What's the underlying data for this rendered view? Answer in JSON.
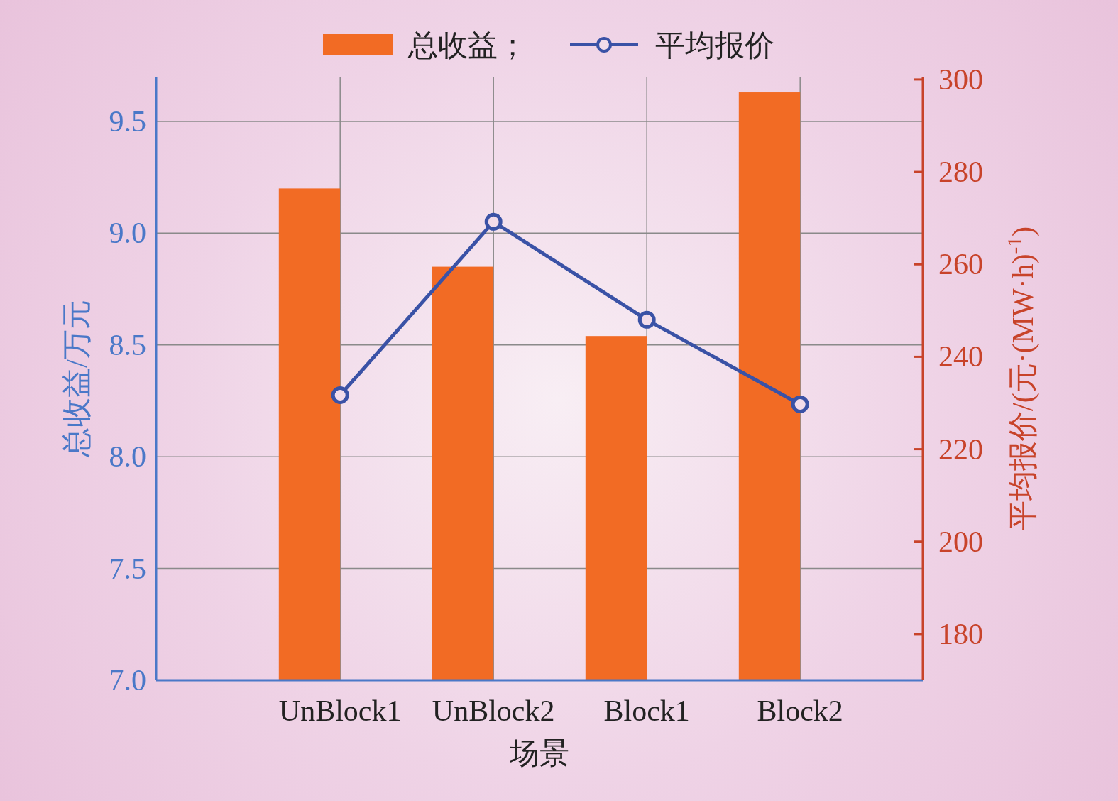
{
  "chart_data": {
    "type": "bar",
    "categories": [
      "UnBlock1",
      "UnBlock2",
      "Block1",
      "Block2"
    ],
    "series": [
      {
        "name": "总收益；",
        "color": "#f26b24",
        "values": [
          9.2,
          8.85,
          8.54,
          9.63
        ]
      },
      {
        "name": "平均报价",
        "type": "line",
        "axis": "y2",
        "color": "#3a52a6",
        "values": [
          231.7,
          269.2,
          248.0,
          229.7
        ]
      }
    ],
    "xlabel": "场景",
    "ylabel": "总收益/万元",
    "y2label": "平均报价/(元·(MW·h)$^{-1}$)",
    "ylim": [
      7.0,
      9.7
    ],
    "yticks": [
      {
        "value": 7.0,
        "label": "7.0"
      },
      {
        "value": 7.5,
        "label": "7.5"
      },
      {
        "value": 8.0,
        "label": "8.0"
      },
      {
        "value": 8.5,
        "label": "8.5"
      },
      {
        "value": 9.0,
        "label": "9.0"
      },
      {
        "value": 9.5,
        "label": "9.5"
      }
    ],
    "y2lim": [
      170,
      300.6
    ],
    "y2ticks": [
      180,
      200,
      220,
      240,
      260,
      280,
      300
    ],
    "grid": true,
    "legend": "top",
    "marker": "circle"
  }
}
